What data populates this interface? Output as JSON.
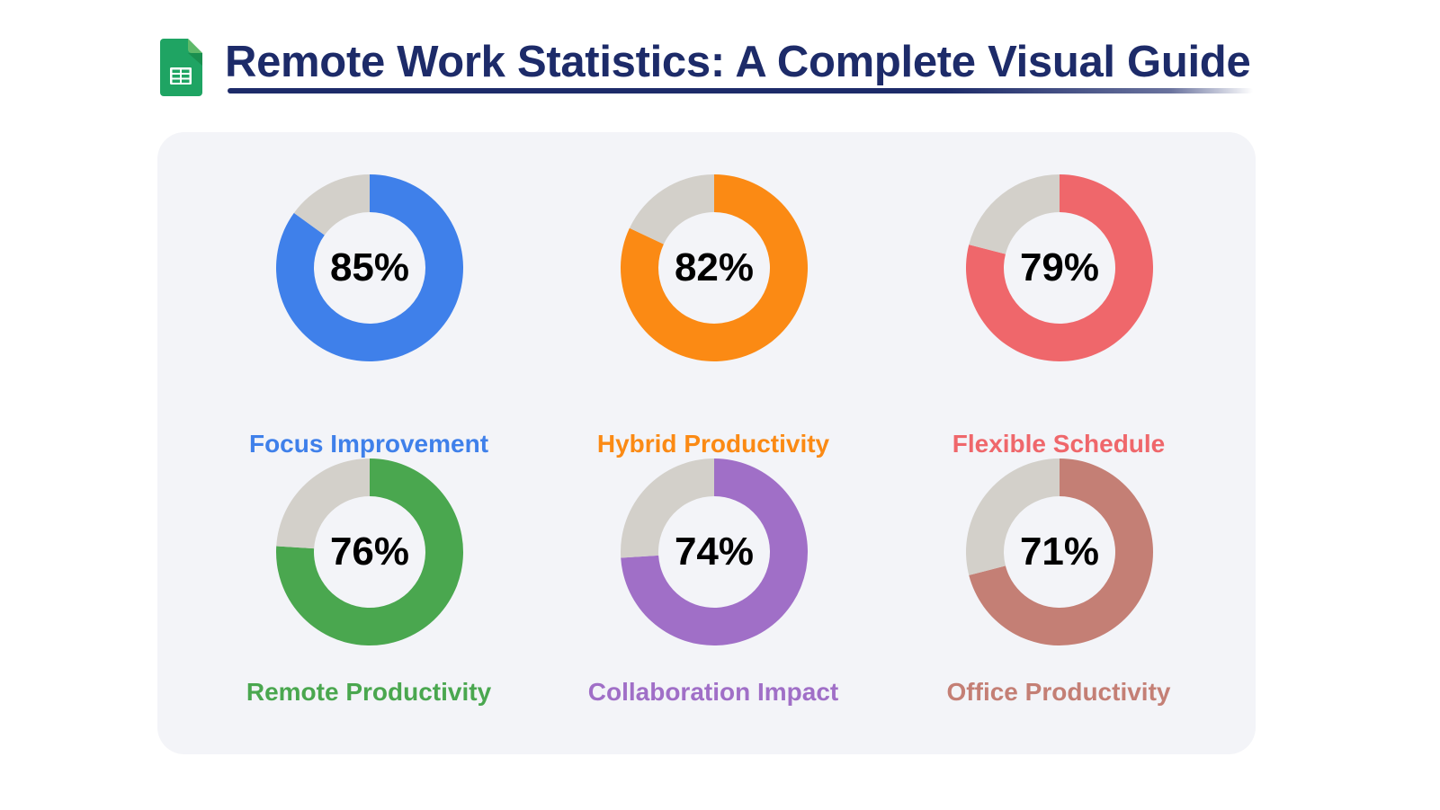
{
  "header": {
    "title": "Remote Work Statistics: A Complete Visual Guide",
    "icon": "google-sheets-icon",
    "title_color": "#1d2b69"
  },
  "colors": {
    "remainder": "#d3d0ca",
    "card_background": "#f3f4f8"
  },
  "stats": [
    {
      "label": "Focus Improvement",
      "value": 85,
      "display": "85%",
      "color": "#3f80ea"
    },
    {
      "label": "Hybrid Productivity",
      "value": 82,
      "display": "82%",
      "color": "#fb8a14"
    },
    {
      "label": "Flexible Schedule",
      "value": 79,
      "display": "79%",
      "color": "#ef676b"
    },
    {
      "label": "Remote Productivity",
      "value": 76,
      "display": "76%",
      "color": "#4aa74f"
    },
    {
      "label": "Collaboration Impact",
      "value": 74,
      "display": "74%",
      "color": "#a06fc7"
    },
    {
      "label": "Office Productivity",
      "value": 71,
      "display": "71%",
      "color": "#c47f75"
    }
  ],
  "chart_data": {
    "type": "pie",
    "subtype": "donut-grid",
    "title": "Remote Work Statistics: A Complete Visual Guide",
    "categories": [
      "Focus Improvement",
      "Hybrid Productivity",
      "Flexible Schedule",
      "Remote Productivity",
      "Collaboration Impact",
      "Office Productivity"
    ],
    "values": [
      85,
      82,
      79,
      76,
      74,
      71
    ],
    "unit": "%",
    "remainder_values": [
      15,
      18,
      21,
      24,
      26,
      29
    ],
    "layout": {
      "rows": 2,
      "cols": 3
    },
    "colors": [
      "#3f80ea",
      "#fb8a14",
      "#ef676b",
      "#4aa74f",
      "#a06fc7",
      "#c47f75"
    ],
    "remainder_color": "#d3d0ca",
    "legend": "none (labels under each donut)"
  }
}
